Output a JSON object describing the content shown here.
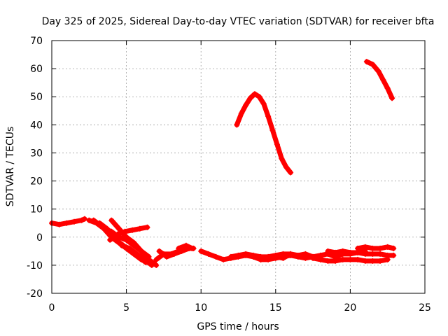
{
  "chart_data": {
    "type": "scatter",
    "title": "Day 325 of 2025, Sidereal Day-to-day VTEC variation (SDTVAR) for receiver bfta",
    "xlabel": "GPS time / hours",
    "ylabel": "SDTVAR / TECUs",
    "xlim": [
      0,
      25
    ],
    "ylim": [
      -20,
      70
    ],
    "xticks": [
      0,
      5,
      10,
      15,
      20,
      25
    ],
    "yticks": [
      -20,
      -10,
      0,
      10,
      20,
      30,
      40,
      50,
      60,
      70
    ],
    "grid": true,
    "marker": "plus",
    "color": "#ff0000",
    "series": [
      {
        "name": "arc-1",
        "x": [
          0.0,
          0.5,
          1.0,
          1.5,
          2.0,
          2.2
        ],
        "y": [
          5,
          4.5,
          5,
          5.5,
          6,
          6.5
        ]
      },
      {
        "name": "arc-2",
        "x": [
          2.5,
          3.0,
          3.5,
          4.0,
          4.5,
          5.0,
          5.5,
          6.0,
          6.5
        ],
        "y": [
          6,
          5,
          3,
          2,
          0,
          -1,
          -3,
          -5,
          -7
        ]
      },
      {
        "name": "arc-3",
        "x": [
          2.8,
          3.3,
          3.8,
          4.3,
          4.8,
          5.3,
          5.8,
          6.3
        ],
        "y": [
          6,
          4,
          2,
          -1,
          -3,
          -5,
          -7,
          -9
        ]
      },
      {
        "name": "arc-4",
        "x": [
          3.2,
          3.7,
          4.2,
          4.7,
          5.2,
          5.7,
          6.2,
          6.7
        ],
        "y": [
          5,
          3,
          0,
          -3,
          -4,
          -6,
          -8,
          -10
        ]
      },
      {
        "name": "arc-5",
        "x": [
          3.5,
          4.0,
          4.5,
          5.0,
          5.5,
          6.0,
          6.5
        ],
        "y": [
          3,
          0,
          -2,
          -4,
          -6,
          -8,
          -9
        ]
      },
      {
        "name": "arc-6",
        "x": [
          3.9,
          4.4,
          4.9,
          5.4,
          5.9,
          6.4
        ],
        "y": [
          -1,
          1,
          2,
          2.5,
          3,
          3.5
        ]
      },
      {
        "name": "arc-7",
        "x": [
          4.0,
          4.5,
          5.0,
          5.5,
          6.0,
          6.5,
          7.0
        ],
        "y": [
          6,
          3,
          0,
          -2,
          -5,
          -8,
          -10
        ]
      },
      {
        "name": "arc-8",
        "x": [
          7.0,
          7.5,
          8.0,
          8.5,
          9.0,
          9.5
        ],
        "y": [
          -8,
          -6,
          -6,
          -5,
          -4,
          -4
        ]
      },
      {
        "name": "arc-9",
        "x": [
          7.2,
          7.7,
          8.2,
          8.7,
          9.2
        ],
        "y": [
          -5,
          -7,
          -6,
          -5,
          -4
        ]
      },
      {
        "name": "arc-10",
        "x": [
          8.5,
          9.0,
          9.4
        ],
        "y": [
          -4,
          -3,
          -4
        ]
      },
      {
        "name": "arc-11",
        "x": [
          10.0,
          10.5,
          11.0,
          11.5,
          12.0,
          12.5,
          13.0,
          13.5,
          14.0,
          14.5,
          15.0,
          15.5,
          16.0,
          16.5,
          17.0,
          17.5,
          18.0
        ],
        "y": [
          -5,
          -6,
          -7,
          -8,
          -7.5,
          -7,
          -6.5,
          -7,
          -8,
          -8,
          -7.5,
          -7,
          -6.5,
          -7,
          -7.5,
          -7,
          -7
        ]
      },
      {
        "name": "arc-12",
        "x": [
          12.0,
          12.5,
          13.0,
          13.5,
          14.0,
          14.5,
          15.0,
          15.5,
          16.0
        ],
        "y": [
          -7,
          -6.5,
          -6,
          -6.5,
          -7,
          -7,
          -6.5,
          -6,
          -6
        ]
      },
      {
        "name": "arc-13",
        "x": [
          14.0,
          14.5,
          15.0,
          15.5,
          16.0,
          16.5,
          17.0,
          17.5,
          18.0,
          18.5,
          19.0,
          19.5,
          20.0,
          20.5,
          21.0
        ],
        "y": [
          -8,
          -7.5,
          -7,
          -7.5,
          -6,
          -6.5,
          -6,
          -7,
          -6.5,
          -6,
          -7,
          -6,
          -6,
          -5.5,
          -5
        ]
      },
      {
        "name": "arc-14",
        "x": [
          17.5,
          18.0,
          18.5,
          19.0,
          19.5,
          20.0,
          20.5,
          21.0,
          21.5,
          22.0,
          22.5
        ],
        "y": [
          -7.5,
          -8,
          -8.5,
          -8.5,
          -8,
          -8,
          -8,
          -8.5,
          -8.5,
          -8.5,
          -8
        ]
      },
      {
        "name": "arc-15",
        "x": [
          18.5,
          19.0,
          19.5,
          20.0,
          20.5,
          21.0,
          21.5,
          22.0,
          22.5,
          22.9
        ],
        "y": [
          -5,
          -5.5,
          -5,
          -5.5,
          -5.5,
          -6,
          -6,
          -6,
          -6.5,
          -6.5
        ]
      },
      {
        "name": "arc-16",
        "x": [
          20.5,
          21.0,
          21.5,
          22.0,
          22.5,
          22.9
        ],
        "y": [
          -4,
          -3.5,
          -4,
          -4,
          -3.5,
          -4
        ]
      },
      {
        "name": "arc-17",
        "x": [
          12.4,
          12.7,
          13.0,
          13.3,
          13.6,
          13.9,
          14.2,
          14.5,
          14.8,
          15.1,
          15.4,
          15.7,
          16.0
        ],
        "y": [
          40,
          44,
          47,
          49.5,
          51,
          50,
          47.5,
          43,
          38,
          33,
          28,
          25,
          23
        ]
      },
      {
        "name": "arc-18",
        "x": [
          21.1,
          21.5,
          21.9,
          22.2,
          22.5,
          22.8
        ],
        "y": [
          62.5,
          61.5,
          59,
          56,
          53,
          49.5
        ]
      }
    ]
  }
}
